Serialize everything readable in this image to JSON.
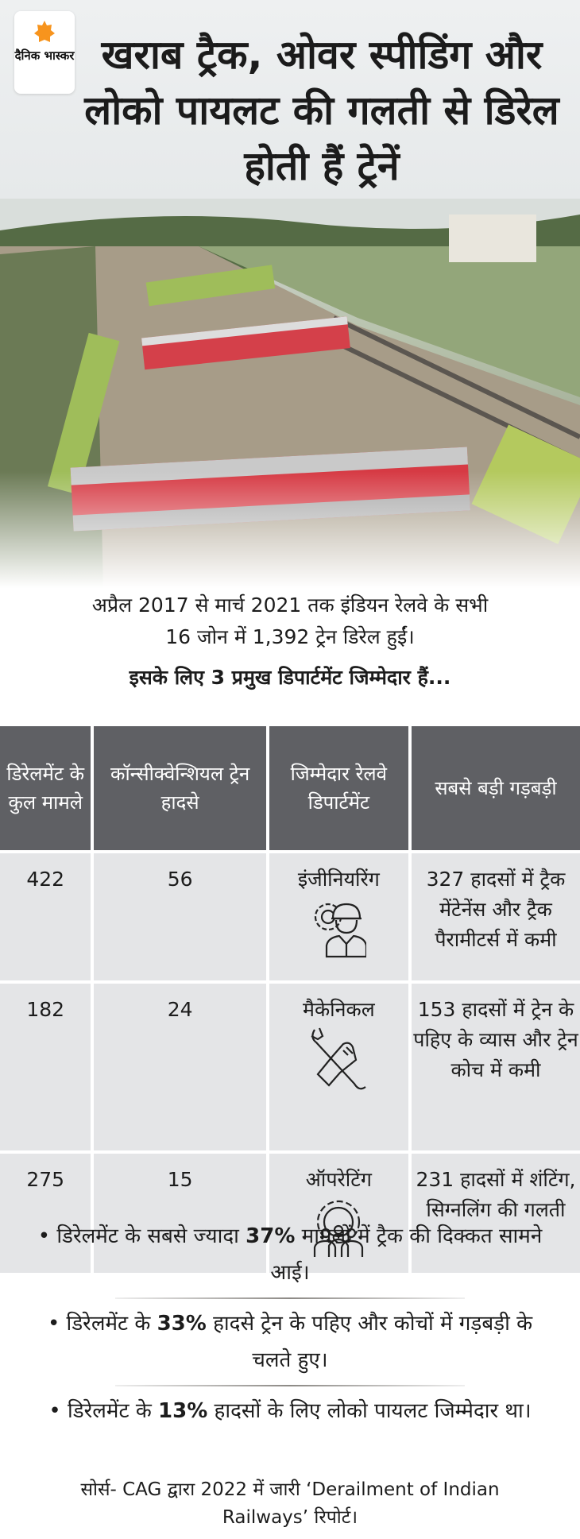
{
  "brand": {
    "name": "दैनिक भास्कर",
    "logo_color": "#f7941d"
  },
  "title": "खराब ट्रैक, ओवर स्पीडिंग और लोको पायलट की गलती से डिरेल होती हैं ट्रेनें",
  "intro": {
    "line1": "अप्रैल 2017 से मार्च 2021 तक इंडियन रेलवे के सभी",
    "line2": "16 जोन में 1,392 ट्रेन डिरेल हुईं।",
    "bold": "इसके लिए 3 प्रमुख डिपार्टमेंट जिम्मेदार हैं..."
  },
  "table": {
    "headers": [
      "डिरेलमेंट के कुल मामले",
      "कॉन्सीक्वेन्शियल ट्रेन हादसे",
      "जिम्मेदार रेलवे डिपार्टमेंट",
      "सबसे बड़ी गड़बड़ी"
    ],
    "rows": [
      {
        "total": "422",
        "consequential": "56",
        "department": "इंजीनियरिंग",
        "icon": "engineer-icon",
        "issue": "327 हादसों में ट्रैक मेंटेनेंस और ट्रैक पैरामीटर्स में कमी"
      },
      {
        "total": "182",
        "consequential": "24",
        "department": "मैकेनिकल",
        "icon": "wrench-hand-icon",
        "issue": "153 हादसों में ट्रेन के पहिए के व्यास और ट्रेन कोच में कमी"
      },
      {
        "total": "275",
        "consequential": "15",
        "department": "ऑपरेटिंग",
        "icon": "team-gear-icon",
        "issue": "231 हादसों में शंटिंग, सिग्नलिंग की गलती"
      }
    ],
    "header_color": "#5f6064",
    "row_color": "#e4e5e7"
  },
  "bullets": [
    {
      "pre": "• डिरेलमेंट के सबसे ज्यादा ",
      "bold": "37%",
      "post": " मामलों में ट्रैक की दिक्कत सामने आई।"
    },
    {
      "pre": "• डिरेलमेंट के ",
      "bold": "33%",
      "post": " हादसे ट्रेन के पहिए और कोचों में गड़बड़ी के चलते हुए।"
    },
    {
      "pre": "• डिरेलमेंट के ",
      "bold": "13%",
      "post": " हादसों के लिए लोको पायलट जिम्मेदार था।"
    }
  ],
  "source": "सोर्स- CAG द्वारा 2022 में जारी ‘Derailment of Indian Railways’ रिपोर्ट।"
}
